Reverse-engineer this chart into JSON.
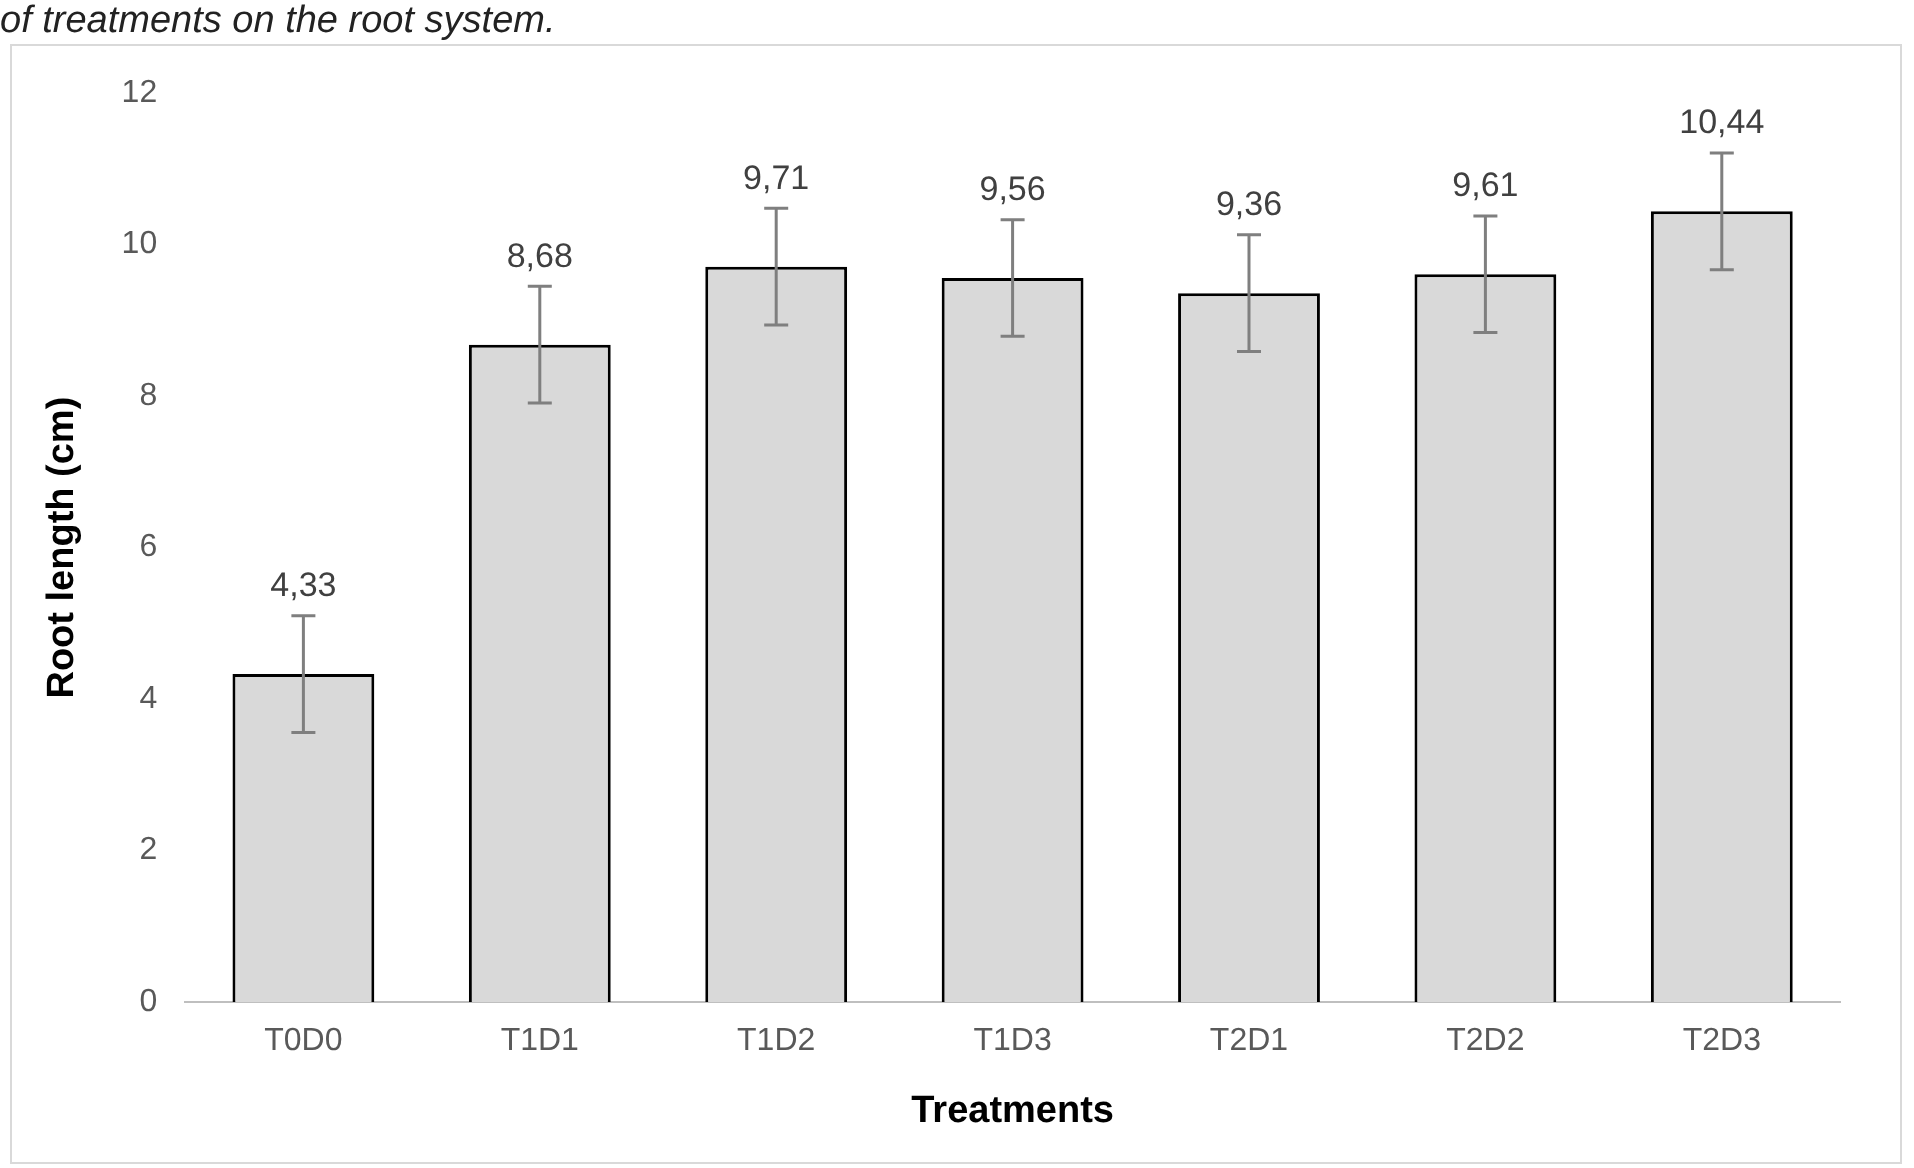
{
  "chart_data": {
    "type": "bar",
    "xlabel": "Treatments",
    "ylabel": "Root length (cm)",
    "annotations": [
      "of treatments on the root system."
    ],
    "categories": [
      "T0D0",
      "T1D1",
      "T1D2",
      "T1D3",
      "T2D1",
      "T2D2",
      "T2D3"
    ],
    "values": [
      4.33,
      8.68,
      9.71,
      9.56,
      9.36,
      9.61,
      10.44
    ],
    "value_labels": [
      "4,33",
      "8,68",
      "9,71",
      "9,56",
      "9,36",
      "9,61",
      "10,44"
    ],
    "errors": [
      0.77,
      0.77,
      0.77,
      0.77,
      0.77,
      0.77,
      0.77
    ],
    "color": "#d9d9d9",
    "ylim": [
      0,
      12
    ],
    "yticks": [
      0,
      2,
      4,
      6,
      8,
      10,
      12
    ],
    "grid": false,
    "legend": false
  }
}
